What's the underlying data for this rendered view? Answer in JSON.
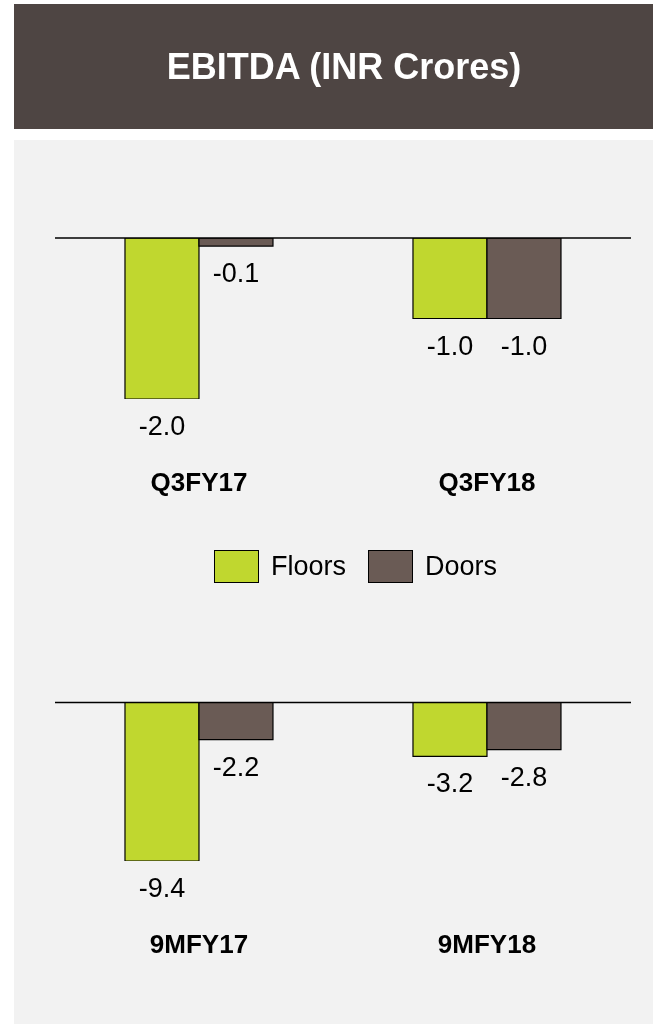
{
  "chart_data": [
    {
      "type": "bar",
      "title": "EBITDA (INR Crores)",
      "categories": [
        "Q3FY17",
        "Q3FY18"
      ],
      "series": [
        {
          "name": "Floors",
          "color": "#c0d72f",
          "values": [
            -2.0,
            -1.0
          ],
          "value_labels": [
            "-2.0",
            "-1.0"
          ]
        },
        {
          "name": "Doors",
          "color": "#6a5b55",
          "values": [
            -0.1,
            -1.0
          ],
          "value_labels": [
            "-0.1",
            "-1.0"
          ]
        }
      ],
      "tick_labels": "x",
      "legend": "bottom"
    },
    {
      "type": "bar",
      "categories": [
        "9MFY17",
        "9MFY18"
      ],
      "series": [
        {
          "color": "#c0d72f",
          "values": [
            -9.4,
            -3.2
          ],
          "value_labels": [
            "-9.4",
            "-3.2"
          ]
        },
        {
          "color": "#6a5b55",
          "values": [
            -2.2,
            -2.8
          ],
          "value_labels": [
            "-2.2",
            "-2.8"
          ]
        }
      ],
      "tick_labels": "x"
    }
  ]
}
